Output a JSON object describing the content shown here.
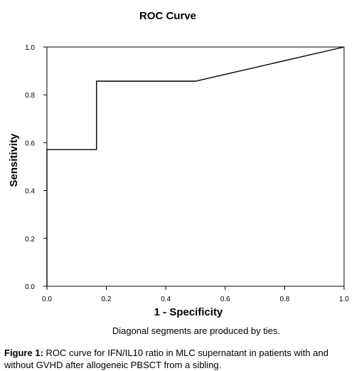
{
  "chart_data": {
    "type": "line",
    "title": "ROC Curve",
    "xlabel": "1 - Specificity",
    "ylabel": "Sensitivity",
    "xlim": [
      0.0,
      1.0
    ],
    "ylim": [
      0.0,
      1.0
    ],
    "xticks": [
      "0.0",
      "0.2",
      "0.4",
      "0.6",
      "0.8",
      "1.0"
    ],
    "yticks": [
      "0.0",
      "0.2",
      "0.4",
      "0.6",
      "0.8",
      "1.0"
    ],
    "grid": false,
    "series": [
      {
        "x": [
          0.0,
          0.0,
          0.167,
          0.167,
          0.5,
          1.0
        ],
        "y": [
          0.0,
          0.571,
          0.571,
          0.857,
          0.857,
          1.0
        ]
      }
    ],
    "footnote": "Diagonal segments are produced by ties."
  },
  "caption": {
    "label": "Figure 1:",
    "text": " ROC curve for IFN/IL10 ratio in MLC supernatant in patients with and without GVHD after allogeneic PBSCT from a sibling."
  },
  "colors": {
    "line": "#000000",
    "axis": "#000000",
    "background": "#ffffff"
  }
}
